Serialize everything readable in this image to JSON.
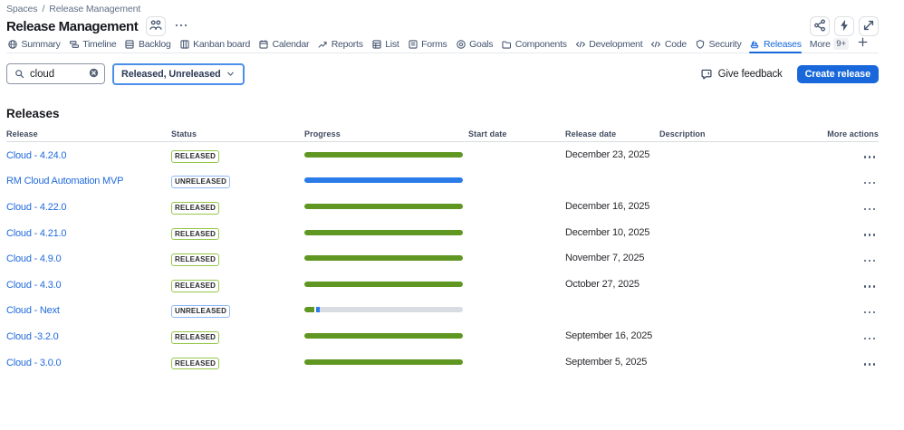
{
  "breadcrumb": {
    "items": [
      "Spaces",
      "Release Management"
    ],
    "separator": "/"
  },
  "header": {
    "title": "Release Management",
    "title_icon": "people-icon",
    "more_glyph": "more-horizontal",
    "actions": [
      {
        "name": "share-button",
        "icon": "share-icon"
      },
      {
        "name": "automation-button",
        "icon": "lightning-icon"
      },
      {
        "name": "fullscreen-button",
        "icon": "expand-icon"
      }
    ]
  },
  "tabs": {
    "items": [
      {
        "label": "Summary",
        "icon": "globe-icon",
        "active": false
      },
      {
        "label": "Timeline",
        "icon": "timeline-icon",
        "active": false
      },
      {
        "label": "Backlog",
        "icon": "backlog-icon",
        "active": false
      },
      {
        "label": "Kanban board",
        "icon": "board-icon",
        "active": false
      },
      {
        "label": "Calendar",
        "icon": "calendar-icon",
        "active": false
      },
      {
        "label": "Reports",
        "icon": "reports-icon",
        "active": false
      },
      {
        "label": "List",
        "icon": "list-icon",
        "active": false
      },
      {
        "label": "Forms",
        "icon": "forms-icon",
        "active": false
      },
      {
        "label": "Goals",
        "icon": "goals-icon",
        "active": false
      },
      {
        "label": "Components",
        "icon": "components-icon",
        "active": false
      },
      {
        "label": "Development",
        "icon": "code-icon",
        "active": false
      },
      {
        "label": "Code",
        "icon": "code-icon",
        "active": false
      },
      {
        "label": "Security",
        "icon": "shield-icon",
        "active": false
      },
      {
        "label": "Releases",
        "icon": "ship-icon",
        "active": true
      }
    ],
    "more_label": "More",
    "more_badge": "9+",
    "add_label": "+"
  },
  "toolbar": {
    "search": {
      "value": "cloud"
    },
    "filter": {
      "value": "Released, Unreleased"
    },
    "feedback_label": "Give feedback",
    "create_label": "Create release"
  },
  "section": {
    "heading": "Releases"
  },
  "table": {
    "columns": [
      "Release",
      "Status",
      "Progress",
      "Start date",
      "Release date",
      "Description",
      "More actions"
    ],
    "rows": [
      {
        "name": "Cloud - 4.24.0",
        "status": "RELEASED",
        "status_type": "released",
        "progress": [
          {
            "color": "green",
            "pct": 100
          }
        ],
        "start_date": "",
        "release_date": "December 23, 2025",
        "description": ""
      },
      {
        "name": "RM Cloud Automation MVP",
        "status": "UNRELEASED",
        "status_type": "unreleased",
        "progress": [
          {
            "color": "blue",
            "pct": 100
          }
        ],
        "start_date": "",
        "release_date": "",
        "description": ""
      },
      {
        "name": "Cloud - 4.22.0",
        "status": "RELEASED",
        "status_type": "released",
        "progress": [
          {
            "color": "green",
            "pct": 100
          }
        ],
        "start_date": "",
        "release_date": "December 16, 2025",
        "description": ""
      },
      {
        "name": "Cloud - 4.21.0",
        "status": "RELEASED",
        "status_type": "released",
        "progress": [
          {
            "color": "green",
            "pct": 100
          }
        ],
        "start_date": "",
        "release_date": "December 10, 2025",
        "description": ""
      },
      {
        "name": "Cloud - 4.9.0",
        "status": "RELEASED",
        "status_type": "released",
        "progress": [
          {
            "color": "green",
            "pct": 100
          }
        ],
        "start_date": "",
        "release_date": "November 7, 2025",
        "description": ""
      },
      {
        "name": "Cloud - 4.3.0",
        "status": "RELEASED",
        "status_type": "released",
        "progress": [
          {
            "color": "green",
            "pct": 100
          }
        ],
        "start_date": "",
        "release_date": "October 27, 2025",
        "description": ""
      },
      {
        "name": "Cloud - Next",
        "status": "UNRELEASED",
        "status_type": "unreleased",
        "progress": [
          {
            "color": "green",
            "pct": 6.3
          },
          {
            "color": "gap",
            "pct": 0.9
          },
          {
            "color": "blue",
            "pct": 2.3
          },
          {
            "color": "track",
            "pct": 90.5
          }
        ],
        "start_date": "",
        "release_date": "",
        "description": ""
      },
      {
        "name": "Cloud -3.2.0",
        "status": "RELEASED",
        "status_type": "released",
        "progress": [
          {
            "color": "green",
            "pct": 100
          }
        ],
        "start_date": "",
        "release_date": "September 16, 2025",
        "description": ""
      },
      {
        "name": "Cloud - 3.0.0",
        "status": "RELEASED",
        "status_type": "released",
        "progress": [
          {
            "color": "green",
            "pct": 100
          }
        ],
        "start_date": "",
        "release_date": "September 5, 2025",
        "description": ""
      }
    ]
  },
  "colors": {
    "accent": "#1868db",
    "link": "#1f6adc",
    "progress_green": "#5f9722",
    "progress_blue": "#2b7be9",
    "progress_track": "#d9dde3",
    "progress_gap": "#ffffff",
    "badge_released_border": "#94c748",
    "badge_unreleased_border": "#8fb8f6"
  }
}
